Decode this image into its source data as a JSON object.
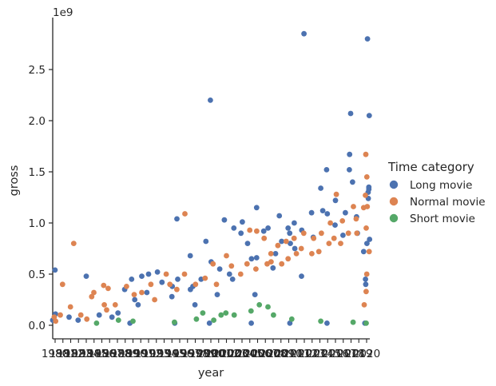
{
  "chart_data": {
    "type": "scatter",
    "title": "",
    "xlabel": "year",
    "ylabel": "gross",
    "offset_label": "1e9",
    "y_unit_multiplier": 1000000000,
    "ylim": [
      -0.15,
      2.98
    ],
    "yticks": [
      0.0,
      0.5,
      1.0,
      1.5,
      2.0,
      2.5
    ],
    "ytick_labels": [
      "0.0",
      "0.5",
      "1.0",
      "1.5",
      "2.0",
      "2.5"
    ],
    "grid": false,
    "legend": {
      "title": "Time category",
      "placement": "right",
      "entries": [
        "Long movie",
        "Normal movie",
        "Short movie"
      ]
    },
    "colors": {
      "Long movie": "#4c72b0",
      "Normal movie": "#dd8452",
      "Short movie": "#55a868"
    },
    "categories": [
      "1980",
      "1981",
      "1982",
      "1983",
      "1984",
      "1985",
      "1986",
      "1987",
      "1988",
      "1989",
      "1990",
      "1991",
      "1992",
      "1993",
      "1994",
      "1995",
      "1996",
      "1997",
      "1998",
      "1999",
      "2000",
      "2001",
      "2002",
      "2003",
      "2004",
      "2005",
      "2006",
      "2007",
      "2008",
      "2009",
      "2010",
      "2011",
      "2012",
      "2013",
      "2014",
      "2015",
      "2016",
      "2017",
      "2018",
      "2019",
      "2020"
    ],
    "series": [
      {
        "name": "Long movie",
        "points": [
          [
            "1980",
            0.54
          ],
          [
            "1980",
            0.11
          ],
          [
            "1980",
            0.05
          ],
          [
            "1982",
            0.08
          ],
          [
            "1983",
            0.05
          ],
          [
            "1984",
            0.48
          ],
          [
            "1986",
            0.1
          ],
          [
            "1987",
            0.08
          ],
          [
            "1988",
            0.12
          ],
          [
            "1989",
            0.35
          ],
          [
            "1990",
            0.45
          ],
          [
            "1990",
            0.25
          ],
          [
            "1991",
            0.48
          ],
          [
            "1991",
            0.2
          ],
          [
            "1992",
            0.5
          ],
          [
            "1992",
            0.32
          ],
          [
            "1993",
            0.52
          ],
          [
            "1994",
            0.42
          ],
          [
            "1995",
            0.38
          ],
          [
            "1995",
            0.28
          ],
          [
            "1996",
            0.45
          ],
          [
            "1996",
            1.04
          ],
          [
            "1997",
            0.68
          ],
          [
            "1997",
            0.35
          ],
          [
            "1998",
            0.38
          ],
          [
            "1998",
            0.2
          ],
          [
            "1999",
            0.82
          ],
          [
            "1999",
            0.45
          ],
          [
            "2000",
            2.2
          ],
          [
            "2000",
            0.62
          ],
          [
            "2001",
            0.55
          ],
          [
            "2001",
            0.3
          ],
          [
            "2002",
            1.03
          ],
          [
            "2002",
            0.5
          ],
          [
            "2003",
            0.95
          ],
          [
            "2003",
            0.45
          ],
          [
            "2004",
            1.01
          ],
          [
            "2004",
            0.9
          ],
          [
            "2005",
            0.8
          ],
          [
            "2005",
            0.65
          ],
          [
            "2006",
            1.15
          ],
          [
            "2006",
            0.66
          ],
          [
            "2006",
            0.3
          ],
          [
            "2007",
            0.95
          ],
          [
            "2007",
            0.92
          ],
          [
            "2008",
            0.7
          ],
          [
            "2008",
            0.56
          ],
          [
            "2009",
            1.07
          ],
          [
            "2009",
            0.82
          ],
          [
            "2010",
            0.95
          ],
          [
            "2010",
            0.8
          ],
          [
            "2010",
            0.9
          ],
          [
            "2011",
            1.0
          ],
          [
            "2011",
            0.75
          ],
          [
            "2012",
            2.85
          ],
          [
            "2012",
            0.93
          ],
          [
            "2012",
            0.48
          ],
          [
            "2013",
            1.1
          ],
          [
            "2013",
            0.86
          ],
          [
            "2014",
            1.34
          ],
          [
            "2014",
            1.12
          ],
          [
            "2015",
            1.52
          ],
          [
            "2015",
            1.09
          ],
          [
            "2016",
            1.22
          ],
          [
            "2016",
            0.98
          ],
          [
            "2017",
            1.1
          ],
          [
            "2017",
            0.88
          ],
          [
            "2018",
            2.07
          ],
          [
            "2018",
            1.67
          ],
          [
            "2018",
            1.52
          ],
          [
            "2018",
            1.4
          ],
          [
            "2019",
            1.06
          ],
          [
            "2019",
            0.9
          ],
          [
            "2020",
            1.24
          ],
          [
            "2020",
            1.33
          ],
          [
            "2020",
            0.84
          ],
          [
            "2021",
            2.05
          ],
          [
            "2021",
            1.35
          ],
          [
            "2021",
            1.3
          ],
          [
            "2022",
            2.8
          ],
          [
            "2022",
            0.8
          ],
          [
            "2022",
            0.72
          ],
          [
            "2023",
            0.45
          ],
          [
            "2023",
            0.4
          ],
          [
            "2020",
            0.02
          ],
          [
            "2015",
            0.02
          ],
          [
            "2010",
            0.02
          ],
          [
            "2005",
            0.02
          ],
          [
            "2000",
            0.02
          ],
          [
            "1995",
            0.02
          ],
          [
            "1990",
            0.02
          ]
        ]
      },
      {
        "name": "Normal movie",
        "points": [
          [
            "1980",
            0.08
          ],
          [
            "1980",
            0.04
          ],
          [
            "1981",
            0.4
          ],
          [
            "1981",
            0.1
          ],
          [
            "1982",
            0.8
          ],
          [
            "1982",
            0.18
          ],
          [
            "1983",
            0.1
          ],
          [
            "1984",
            0.06
          ],
          [
            "1985",
            0.32
          ],
          [
            "1985",
            0.28
          ],
          [
            "1986",
            0.39
          ],
          [
            "1986",
            0.2
          ],
          [
            "1987",
            0.36
          ],
          [
            "1987",
            0.15
          ],
          [
            "1988",
            0.2
          ],
          [
            "1989",
            0.38
          ],
          [
            "1990",
            0.3
          ],
          [
            "1991",
            0.32
          ],
          [
            "1992",
            0.4
          ],
          [
            "1993",
            0.25
          ],
          [
            "1994",
            0.5
          ],
          [
            "1995",
            0.4
          ],
          [
            "1996",
            0.35
          ],
          [
            "1997",
            1.09
          ],
          [
            "1997",
            0.5
          ],
          [
            "1998",
            0.4
          ],
          [
            "1999",
            0.46
          ],
          [
            "2000",
            0.6
          ],
          [
            "2001",
            0.4
          ],
          [
            "2002",
            0.68
          ],
          [
            "2003",
            0.58
          ],
          [
            "2004",
            0.5
          ],
          [
            "2005",
            0.93
          ],
          [
            "2005",
            0.6
          ],
          [
            "2006",
            0.92
          ],
          [
            "2006",
            0.55
          ],
          [
            "2007",
            0.85
          ],
          [
            "2007",
            0.6
          ],
          [
            "2008",
            0.7
          ],
          [
            "2008",
            0.62
          ],
          [
            "2009",
            0.78
          ],
          [
            "2009",
            0.6
          ],
          [
            "2010",
            0.82
          ],
          [
            "2010",
            0.65
          ],
          [
            "2011",
            0.85
          ],
          [
            "2011",
            0.7
          ],
          [
            "2012",
            0.9
          ],
          [
            "2012",
            0.75
          ],
          [
            "2013",
            0.85
          ],
          [
            "2013",
            0.7
          ],
          [
            "2014",
            0.9
          ],
          [
            "2014",
            0.72
          ],
          [
            "2015",
            1.0
          ],
          [
            "2015",
            0.8
          ],
          [
            "2016",
            1.28
          ],
          [
            "2016",
            0.85
          ],
          [
            "2017",
            1.02
          ],
          [
            "2017",
            0.8
          ],
          [
            "2018",
            1.16
          ],
          [
            "2018",
            0.9
          ],
          [
            "2019",
            1.04
          ],
          [
            "2019",
            0.9
          ],
          [
            "2020",
            1.27
          ],
          [
            "2020",
            1.15
          ],
          [
            "2021",
            1.16
          ],
          [
            "2021",
            0.95
          ],
          [
            "2022",
            1.67
          ],
          [
            "2022",
            1.45
          ],
          [
            "2023",
            0.72
          ],
          [
            "2023",
            0.5
          ],
          [
            "2023",
            0.33
          ],
          [
            "2023",
            0.2
          ]
        ]
      },
      {
        "name": "Short movie",
        "points": [
          [
            "1985",
            0.02
          ],
          [
            "1988",
            0.05
          ],
          [
            "1990",
            0.04
          ],
          [
            "1995",
            0.03
          ],
          [
            "1998",
            0.06
          ],
          [
            "1999",
            0.12
          ],
          [
            "2000",
            0.05
          ],
          [
            "2001",
            0.1
          ],
          [
            "2002",
            0.12
          ],
          [
            "2003",
            0.1
          ],
          [
            "2005",
            0.14
          ],
          [
            "2006",
            0.2
          ],
          [
            "2007",
            0.18
          ],
          [
            "2008",
            0.1
          ],
          [
            "2010",
            0.06
          ],
          [
            "2014",
            0.04
          ],
          [
            "2018",
            0.03
          ],
          [
            "2023",
            0.02
          ]
        ]
      }
    ]
  }
}
